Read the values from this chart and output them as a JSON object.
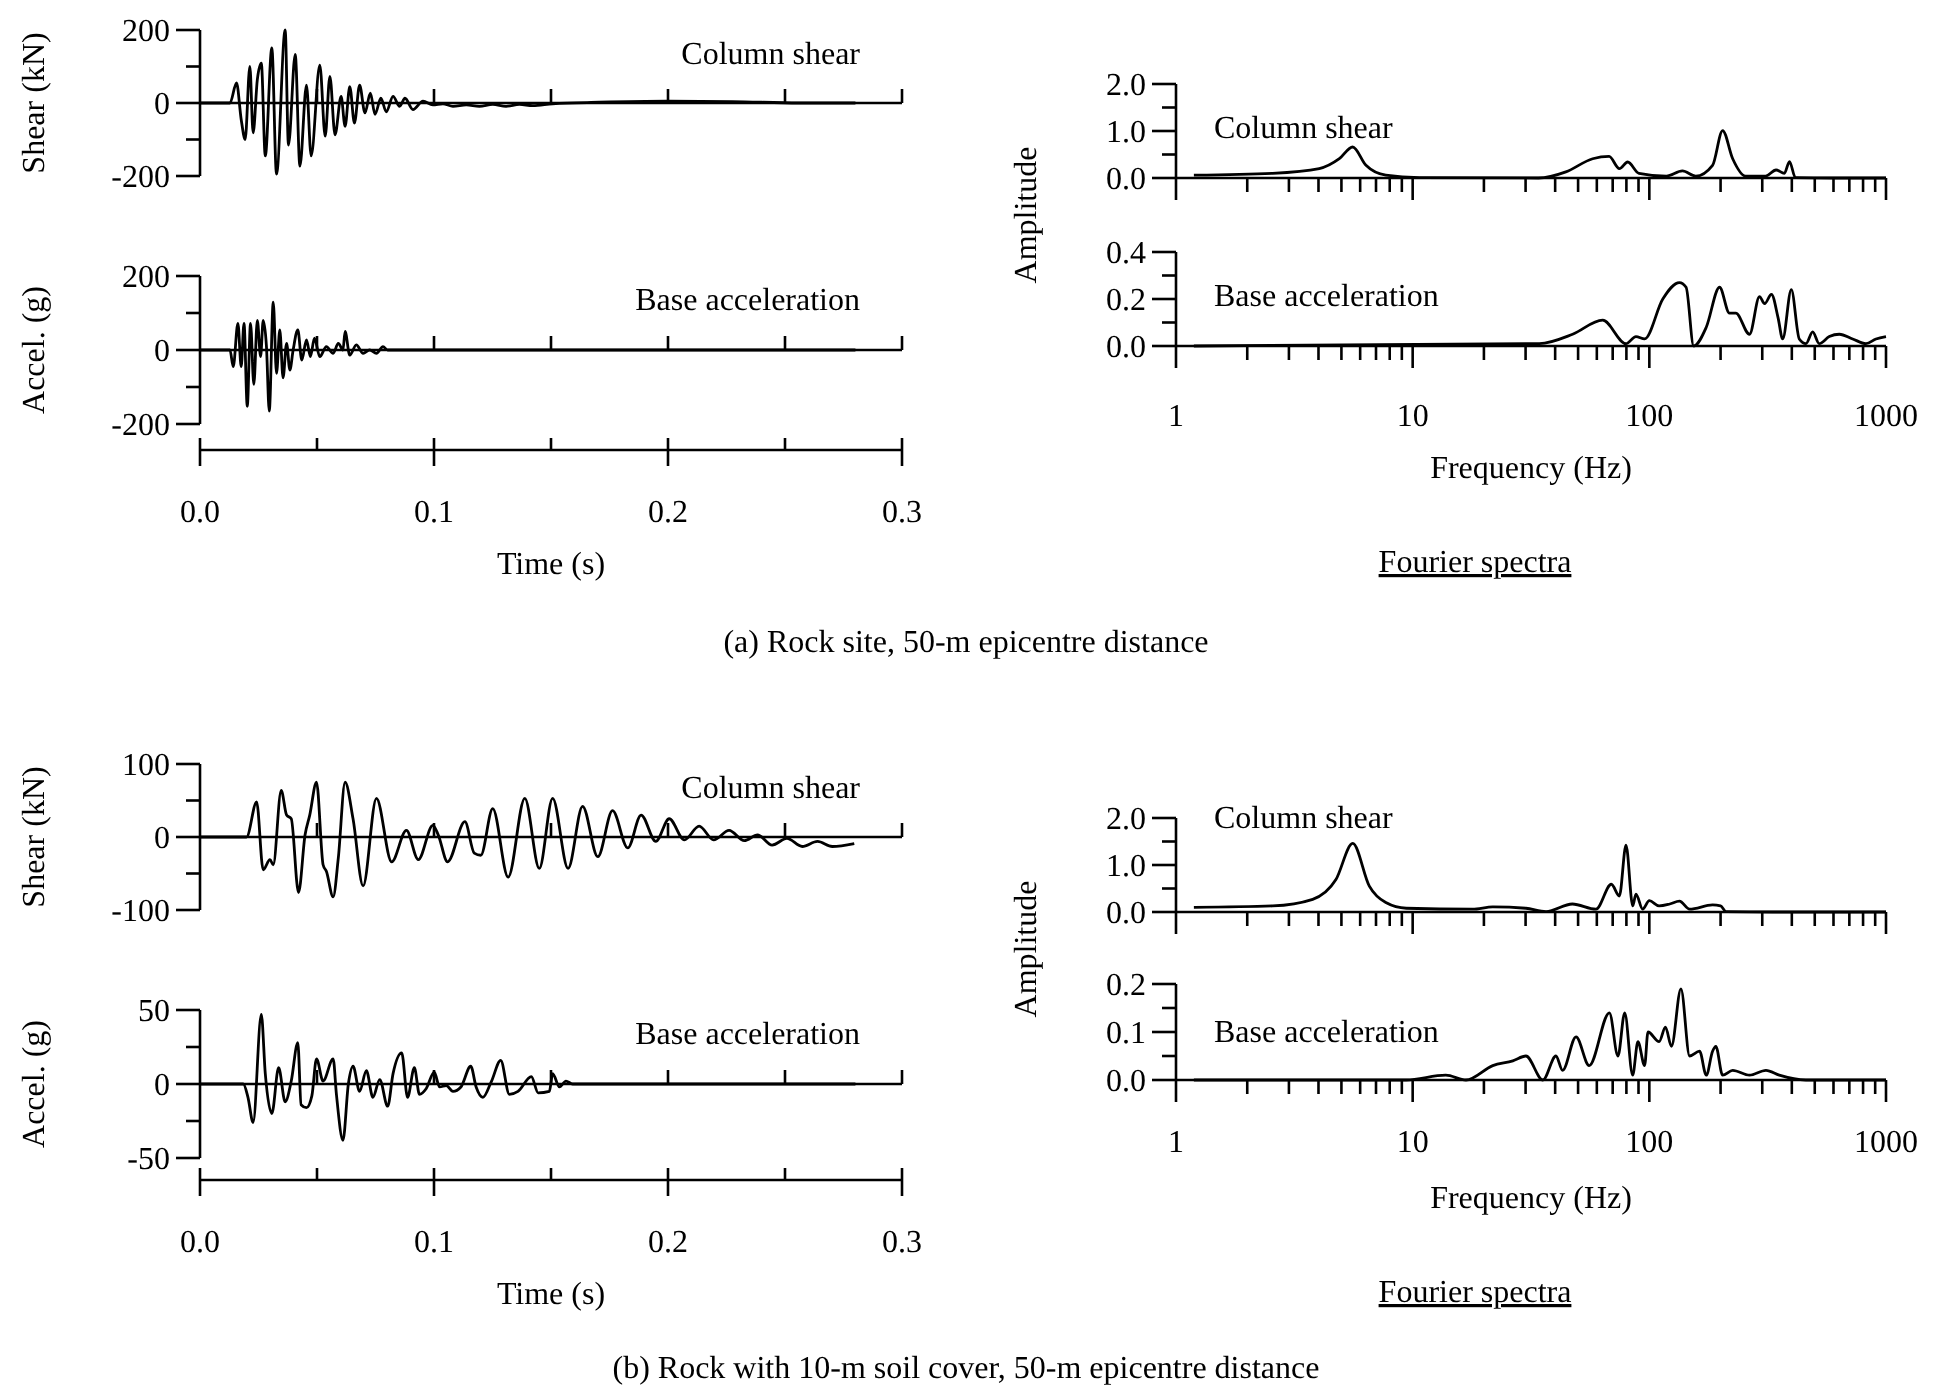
{
  "chart_data": [
    {
      "type": "line",
      "ylabel": "Shear (kN)",
      "annotations": [
        "Column shear"
      ],
      "xlim": [
        0,
        0.3
      ],
      "ylim": [
        -200,
        200
      ],
      "tick_labels": "y",
      "xticks": [
        0,
        {
          "value": 0.05,
          "label": null
        },
        0.1,
        {
          "value": 0.15,
          "label": null
        },
        0.2,
        {
          "value": 0.25,
          "label": null
        },
        0.3
      ],
      "yticks": [
        {
          "value": -200,
          "label": "-200"
        },
        {
          "value": -100,
          "label": null
        },
        0,
        {
          "value": 100,
          "label": null
        },
        200
      ],
      "ref_lines": [
        {
          "axis": "y",
          "value": 0
        }
      ],
      "series": [
        {
          "color": "#000000",
          "x": [
            0,
            0.0128,
            0.0156,
            0.0176,
            0.0193,
            0.0213,
            0.0227,
            0.0245,
            0.0262,
            0.0279,
            0.0307,
            0.0327,
            0.0364,
            0.0378,
            0.0407,
            0.0427,
            0.0455,
            0.0475,
            0.0512,
            0.0535,
            0.0555,
            0.0577,
            0.0603,
            0.062,
            0.064,
            0.066,
            0.0682,
            0.0705,
            0.0728,
            0.0748,
            0.0773,
            0.0796,
            0.0825,
            0.0853,
            0.0876,
            0.091,
            0.0953,
            0.0995,
            0.1038,
            0.1081,
            0.1138,
            0.1194,
            0.1251,
            0.1308,
            0.1365,
            0.1422,
            0.1507,
            0.1706,
            0.1991,
            0.2275,
            0.2559,
            0.2801
          ],
          "values": [
            0,
            0,
            55,
            -45,
            -100,
            100,
            -82,
            64,
            109,
            -145,
            151,
            -195,
            200,
            -115,
            133,
            -173,
            49,
            -145,
            104,
            -91,
            73,
            -87,
            18,
            -64,
            45,
            -55,
            49,
            -27,
            27,
            -31,
            13,
            -24,
            18,
            -9,
            13,
            -18,
            5,
            -5,
            -2,
            -9,
            -5,
            -9,
            -4,
            -9,
            -4,
            -7,
            -2,
            2,
            5,
            4,
            0,
            0
          ]
        }
      ]
    },
    {
      "type": "line",
      "ylabel": "Amplitude",
      "annotations": [
        "Column shear"
      ],
      "log": "x",
      "xlim": [
        1,
        1000
      ],
      "ylim": [
        0,
        2
      ],
      "tick_labels": "y",
      "xticks": [
        1,
        {
          "value": 2,
          "label": null
        },
        {
          "value": 3,
          "label": null
        },
        {
          "value": 4,
          "label": null
        },
        {
          "value": 5,
          "label": null
        },
        {
          "value": 6,
          "label": null
        },
        {
          "value": 7,
          "label": null
        },
        {
          "value": 8,
          "label": null
        },
        {
          "value": 9,
          "label": null
        },
        10,
        {
          "value": 20,
          "label": null
        },
        {
          "value": 30,
          "label": null
        },
        {
          "value": 40,
          "label": null
        },
        {
          "value": 50,
          "label": null
        },
        {
          "value": 60,
          "label": null
        },
        {
          "value": 70,
          "label": null
        },
        {
          "value": 80,
          "label": null
        },
        {
          "value": 90,
          "label": null
        },
        100,
        {
          "value": 200,
          "label": null
        },
        {
          "value": 300,
          "label": null
        },
        {
          "value": 400,
          "label": null
        },
        {
          "value": 500,
          "label": null
        },
        {
          "value": 600,
          "label": null
        },
        {
          "value": 700,
          "label": null
        },
        {
          "value": 800,
          "label": null
        },
        {
          "value": 900,
          "label": null
        },
        1000
      ],
      "yticks": [
        {
          "value": 0,
          "label": "0.0"
        },
        {
          "value": 0.5,
          "label": null
        },
        {
          "value": 1,
          "label": "1.0"
        },
        {
          "value": 1.5,
          "label": null
        },
        {
          "value": 2,
          "label": "2.0"
        }
      ],
      "series": [
        {
          "color": "#000000",
          "x": [
            1.19,
            2.56,
            4.03,
            4.9,
            5.58,
            6.35,
            7.7,
            10.7,
            34,
            44.4,
            57.6,
            67.6,
            74.7,
            81,
            90.4,
            118,
            138,
            157,
            185,
            204,
            225,
            255,
            310,
            343,
            372,
            391,
            414,
            594,
            1000
          ],
          "values": [
            0.06,
            0.1,
            0.2,
            0.41,
            0.66,
            0.27,
            0.06,
            0.01,
            0,
            0.13,
            0.41,
            0.46,
            0.2,
            0.34,
            0.1,
            0.04,
            0.15,
            0.04,
            0.27,
            1.01,
            0.41,
            0.04,
            0.04,
            0.17,
            0.1,
            0.35,
            0.01,
            0,
            0
          ]
        }
      ]
    },
    {
      "type": "line",
      "ylabel": "Accel. (g)",
      "xlabel": "Time (s)",
      "annotations": [
        "Base acceleration"
      ],
      "xlim": [
        0,
        0.3
      ],
      "ylim": [
        -200,
        200
      ],
      "xticks": [
        {
          "value": 0,
          "label": "0.0"
        },
        {
          "value": 0.05,
          "label": null
        },
        0.1,
        {
          "value": 0.15,
          "label": null
        },
        0.2,
        {
          "value": 0.25,
          "label": null
        },
        0.3
      ],
      "yticks": [
        {
          "value": -200,
          "label": "-200"
        },
        {
          "value": -100,
          "label": null
        },
        0,
        {
          "value": 100,
          "label": null
        },
        200
      ],
      "ref_lines": [
        {
          "axis": "y",
          "value": 0
        }
      ],
      "series": [
        {
          "color": "#000000",
          "x": [
            0,
            0.0128,
            0.0142,
            0.0162,
            0.0176,
            0.0188,
            0.0202,
            0.0216,
            0.023,
            0.0245,
            0.0259,
            0.027,
            0.0284,
            0.0296,
            0.0313,
            0.0327,
            0.0341,
            0.0355,
            0.037,
            0.0384,
            0.0398,
            0.0418,
            0.0435,
            0.0455,
            0.0472,
            0.0489,
            0.0512,
            0.054,
            0.0569,
            0.0591,
            0.0611,
            0.062,
            0.064,
            0.0668,
            0.0697,
            0.0725,
            0.0754,
            0.0782,
            0.0802,
            0.2801
          ],
          "values": [
            0,
            0,
            -45,
            72,
            -45,
            72,
            -152,
            72,
            -93,
            80,
            -18,
            80,
            9,
            -165,
            129,
            -63,
            54,
            -75,
            18,
            -54,
            0,
            54,
            -27,
            27,
            -18,
            32,
            -18,
            9,
            -9,
            18,
            0,
            50,
            -14,
            14,
            -9,
            0,
            -9,
            9,
            0,
            0
          ]
        }
      ]
    },
    {
      "type": "line",
      "xlabel": "Frequency (Hz)",
      "annotations": [
        "Base acceleration",
        "Fourier spectra",
        "(a) Rock site, 50-m epicentre distance"
      ],
      "log": "x",
      "xlim": [
        1,
        1000
      ],
      "ylim": [
        0,
        0.4
      ],
      "xticks": [
        1,
        {
          "value": 2,
          "label": null
        },
        {
          "value": 3,
          "label": null
        },
        {
          "value": 4,
          "label": null
        },
        {
          "value": 5,
          "label": null
        },
        {
          "value": 6,
          "label": null
        },
        {
          "value": 7,
          "label": null
        },
        {
          "value": 8,
          "label": null
        },
        {
          "value": 9,
          "label": null
        },
        10,
        {
          "value": 20,
          "label": null
        },
        {
          "value": 30,
          "label": null
        },
        {
          "value": 40,
          "label": null
        },
        {
          "value": 50,
          "label": null
        },
        {
          "value": 60,
          "label": null
        },
        {
          "value": 70,
          "label": null
        },
        {
          "value": 80,
          "label": null
        },
        {
          "value": 90,
          "label": null
        },
        100,
        {
          "value": 200,
          "label": null
        },
        {
          "value": 300,
          "label": null
        },
        {
          "value": 400,
          "label": null
        },
        {
          "value": 500,
          "label": null
        },
        {
          "value": 600,
          "label": null
        },
        {
          "value": 700,
          "label": null
        },
        {
          "value": 800,
          "label": null
        },
        {
          "value": 900,
          "label": null
        },
        1000
      ],
      "yticks": [
        {
          "value": 0,
          "label": "0.0"
        },
        {
          "value": 0.1,
          "label": null
        },
        0.2,
        {
          "value": 0.3,
          "label": null
        },
        0.4
      ],
      "series": [
        {
          "color": "#000000",
          "x": [
            1.19,
            34.3,
            47.4,
            63.5,
            79.7,
            87.8,
            95.5,
            114,
            134,
            143,
            154,
            174,
            198,
            218,
            232,
            265,
            292,
            307,
            328,
            350,
            366,
            398,
            430,
            459,
            490,
            522,
            576,
            635,
            723,
            823,
            907,
            1000
          ],
          "values": [
            0,
            0.01,
            0.05,
            0.11,
            0.01,
            0.04,
            0.03,
            0.2,
            0.27,
            0.25,
            0,
            0.08,
            0.25,
            0.14,
            0.14,
            0.05,
            0.21,
            0.18,
            0.22,
            0.12,
            0.03,
            0.24,
            0.03,
            0.01,
            0.06,
            0.01,
            0.04,
            0.05,
            0.03,
            0.01,
            0.03,
            0.04
          ]
        }
      ]
    },
    {
      "type": "line",
      "ylabel": "Shear (kN)",
      "annotations": [
        "Column shear"
      ],
      "xlim": [
        0,
        0.3
      ],
      "ylim": [
        -100,
        100
      ],
      "tick_labels": "y",
      "xticks": [
        0,
        {
          "value": 0.05,
          "label": null
        },
        0.1,
        {
          "value": 0.15,
          "label": null
        },
        0.2,
        {
          "value": 0.25,
          "label": null
        },
        0.3
      ],
      "yticks": [
        {
          "value": -100,
          "label": "-100"
        },
        {
          "value": -50,
          "label": null
        },
        0,
        {
          "value": 50,
          "label": null
        },
        100
      ],
      "ref_lines": [
        {
          "axis": "y",
          "value": 0
        }
      ],
      "series": [
        {
          "color": "#000000",
          "x": [
            0,
            0.0199,
            0.0242,
            0.027,
            0.0299,
            0.0313,
            0.0347,
            0.037,
            0.039,
            0.0421,
            0.0449,
            0.0469,
            0.0498,
            0.0526,
            0.054,
            0.0569,
            0.0591,
            0.062,
            0.0654,
            0.0697,
            0.0754,
            0.0819,
            0.0882,
            0.0933,
            0.0995,
            0.1018,
            0.1058,
            0.1132,
            0.1172,
            0.12,
            0.1251,
            0.1317,
            0.1388,
            0.145,
            0.1507,
            0.1573,
            0.1635,
            0.17,
            0.1763,
            0.1828,
            0.1885,
            0.1948,
            0.2005,
            0.207,
            0.2133,
            0.2195,
            0.2261,
            0.2326,
            0.2383,
            0.2445,
            0.2508,
            0.2574,
            0.2639,
            0.2702,
            0.2796
          ],
          "values": [
            0,
            0,
            48,
            -45,
            -31,
            -38,
            64,
            30,
            25,
            -76,
            3,
            30,
            75,
            -38,
            -47,
            -82,
            -29,
            75,
            25,
            -67,
            53,
            -34,
            9,
            -31,
            16,
            3,
            -34,
            21,
            -22,
            -25,
            39,
            -55,
            53,
            -43,
            53,
            -43,
            42,
            -27,
            36,
            -15,
            30,
            -6,
            25,
            -4,
            15,
            -4,
            9,
            -5,
            3,
            -11,
            -2,
            -13,
            -6,
            -13,
            -9
          ]
        }
      ]
    },
    {
      "type": "line",
      "ylabel": "Amplitude",
      "annotations": [
        "Column shear"
      ],
      "log": "x",
      "xlim": [
        1,
        1000
      ],
      "ylim": [
        0,
        2
      ],
      "tick_labels": "y",
      "xticks": [
        1,
        {
          "value": 2,
          "label": null
        },
        {
          "value": 3,
          "label": null
        },
        {
          "value": 4,
          "label": null
        },
        {
          "value": 5,
          "label": null
        },
        {
          "value": 6,
          "label": null
        },
        {
          "value": 7,
          "label": null
        },
        {
          "value": 8,
          "label": null
        },
        {
          "value": 9,
          "label": null
        },
        10,
        {
          "value": 20,
          "label": null
        },
        {
          "value": 30,
          "label": null
        },
        {
          "value": 40,
          "label": null
        },
        {
          "value": 50,
          "label": null
        },
        {
          "value": 60,
          "label": null
        },
        {
          "value": 70,
          "label": null
        },
        {
          "value": 80,
          "label": null
        },
        {
          "value": 90,
          "label": null
        },
        100,
        {
          "value": 200,
          "label": null
        },
        {
          "value": 300,
          "label": null
        },
        {
          "value": 400,
          "label": null
        },
        {
          "value": 500,
          "label": null
        },
        {
          "value": 600,
          "label": null
        },
        {
          "value": 700,
          "label": null
        },
        {
          "value": 800,
          "label": null
        },
        {
          "value": 900,
          "label": null
        },
        1000
      ],
      "yticks": [
        {
          "value": 0,
          "label": "0.0"
        },
        {
          "value": 0.5,
          "label": null
        },
        {
          "value": 1,
          "label": "1.0"
        },
        {
          "value": 1.5,
          "label": null
        },
        {
          "value": 2,
          "label": "2.0"
        }
      ],
      "series": [
        {
          "color": "#000000",
          "x": [
            1.19,
            2.56,
            3.78,
            4.74,
            5.58,
            6.56,
            7.7,
            9.4,
            17.9,
            21.8,
            30.1,
            36.6,
            47.3,
            59.5,
            69.1,
            74.7,
            79.7,
            85.1,
            87.8,
            93.7,
            100,
            110,
            122,
            134,
            148,
            185,
            200,
            211,
            332,
            1000
          ],
          "values": [
            0.1,
            0.13,
            0.27,
            0.69,
            1.46,
            0.55,
            0.2,
            0.08,
            0.06,
            0.11,
            0.08,
            0.01,
            0.17,
            0.06,
            0.59,
            0.34,
            1.42,
            0.13,
            0.38,
            0.06,
            0.24,
            0.13,
            0.17,
            0.23,
            0.06,
            0.15,
            0.13,
            0.01,
            0,
            0
          ]
        }
      ]
    },
    {
      "type": "line",
      "ylabel": "Accel. (g)",
      "xlabel": "Time (s)",
      "annotations": [
        "Base acceleration"
      ],
      "xlim": [
        0,
        0.3
      ],
      "ylim": [
        -50,
        50
      ],
      "xticks": [
        {
          "value": 0,
          "label": "0.0"
        },
        {
          "value": 0.05,
          "label": null
        },
        0.1,
        {
          "value": 0.15,
          "label": null
        },
        0.2,
        {
          "value": 0.25,
          "label": null
        },
        0.3
      ],
      "yticks": [
        -50,
        {
          "value": -25,
          "label": null
        },
        0,
        {
          "value": 25,
          "label": null
        },
        50
      ],
      "ref_lines": [
        {
          "axis": "y",
          "value": 0
        }
      ],
      "series": [
        {
          "color": "#000000",
          "x": [
            0,
            0.0185,
            0.0205,
            0.0227,
            0.0262,
            0.0279,
            0.0307,
            0.0336,
            0.0364,
            0.039,
            0.0418,
            0.0432,
            0.0455,
            0.0478,
            0.0498,
            0.0526,
            0.0569,
            0.0583,
            0.0611,
            0.0634,
            0.0654,
            0.0682,
            0.0711,
            0.0739,
            0.0768,
            0.0802,
            0.0825,
            0.0862,
            0.0887,
            0.0916,
            0.0938,
            0.0967,
            0.1001,
            0.1024,
            0.1052,
            0.1081,
            0.1115,
            0.1157,
            0.118,
            0.1209,
            0.1246,
            0.1285,
            0.1322,
            0.1359,
            0.1416,
            0.1445,
            0.1493,
            0.1507,
            0.1536,
            0.1564,
            0.1592,
            0.2801
          ],
          "values": [
            0,
            0,
            -9,
            -26,
            47,
            7,
            -20,
            11,
            -12,
            2,
            28,
            -14,
            -16,
            -8,
            17,
            2,
            17,
            -7,
            -38,
            0,
            12,
            -5,
            9,
            -9,
            3,
            -15,
            7,
            21,
            -9,
            11,
            -7,
            -3,
            8,
            -2,
            -1,
            -5,
            -2,
            12,
            -2,
            -9,
            2,
            16,
            -7,
            -5,
            5,
            -6,
            -5,
            7,
            -2,
            2,
            0,
            0
          ]
        }
      ]
    },
    {
      "type": "line",
      "xlabel": "Frequency (Hz)",
      "annotations": [
        "Base acceleration",
        "Fourier spectra",
        "(b) Rock with 10-m soil cover, 50-m epicentre distance"
      ],
      "log": "x",
      "xlim": [
        1,
        1000
      ],
      "ylim": [
        0,
        0.2
      ],
      "xticks": [
        1,
        {
          "value": 2,
          "label": null
        },
        {
          "value": 3,
          "label": null
        },
        {
          "value": 4,
          "label": null
        },
        {
          "value": 5,
          "label": null
        },
        {
          "value": 6,
          "label": null
        },
        {
          "value": 7,
          "label": null
        },
        {
          "value": 8,
          "label": null
        },
        {
          "value": 9,
          "label": null
        },
        10,
        {
          "value": 20,
          "label": null
        },
        {
          "value": 30,
          "label": null
        },
        {
          "value": 40,
          "label": null
        },
        {
          "value": 50,
          "label": null
        },
        {
          "value": 60,
          "label": null
        },
        {
          "value": 70,
          "label": null
        },
        {
          "value": 80,
          "label": null
        },
        {
          "value": 90,
          "label": null
        },
        100,
        {
          "value": 200,
          "label": null
        },
        {
          "value": 300,
          "label": null
        },
        {
          "value": 400,
          "label": null
        },
        {
          "value": 500,
          "label": null
        },
        {
          "value": 600,
          "label": null
        },
        {
          "value": 700,
          "label": null
        },
        {
          "value": 800,
          "label": null
        },
        {
          "value": 900,
          "label": null
        },
        1000
      ],
      "yticks": [
        {
          "value": 0,
          "label": "0.0"
        },
        {
          "value": 0.05,
          "label": null
        },
        0.1,
        {
          "value": 0.15,
          "label": null
        },
        0.2
      ],
      "series": [
        {
          "color": "#000000",
          "x": [
            1.19,
            9.4,
            13.8,
            16.8,
            21.8,
            26.5,
            30.1,
            35.5,
            40.3,
            43,
            49,
            55.7,
            67.8,
            73.7,
            78.7,
            85,
            89.5,
            95.5,
            98.7,
            110,
            117,
            124,
            136,
            148,
            163,
            174,
            185,
            191,
            204,
            225,
            265,
            311,
            354,
            459,
            1000
          ],
          "values": [
            0,
            0,
            0.01,
            0,
            0.03,
            0.04,
            0.05,
            0,
            0.05,
            0.02,
            0.09,
            0.03,
            0.14,
            0.05,
            0.14,
            0.01,
            0.08,
            0.03,
            0.1,
            0.08,
            0.11,
            0.07,
            0.19,
            0.05,
            0.06,
            0.01,
            0.06,
            0.07,
            0.01,
            0.02,
            0.01,
            0.02,
            0.01,
            0,
            0
          ]
        }
      ]
    }
  ]
}
